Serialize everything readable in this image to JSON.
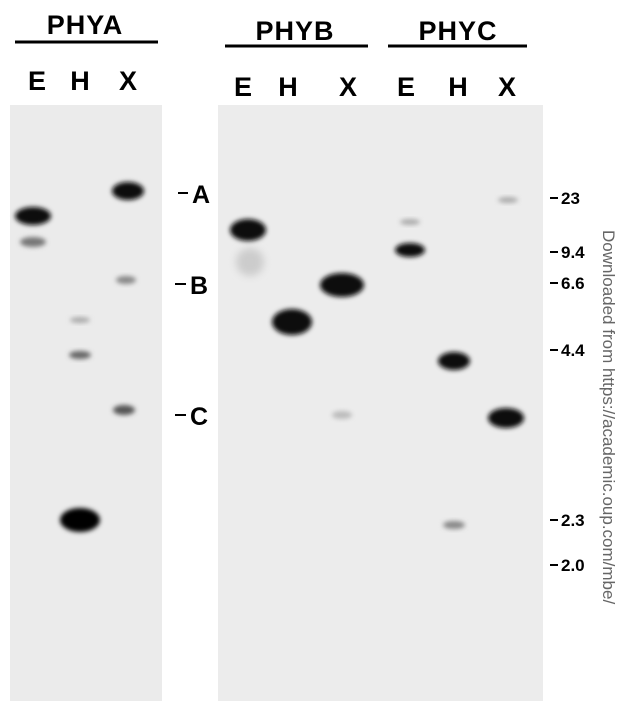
{
  "groups": [
    {
      "title": "PHYA",
      "lanes": [
        "E",
        "H",
        "X"
      ]
    },
    {
      "title": "PHYB",
      "lanes": [
        "E",
        "H",
        "X"
      ]
    },
    {
      "title": "PHYC",
      "lanes": [
        "E",
        "H",
        "X"
      ]
    }
  ],
  "band_markers": [
    "A",
    "B",
    "C"
  ],
  "size_markers": [
    "23",
    "9.4",
    "6.6",
    "4.4",
    "2.3",
    "2.0"
  ],
  "watermark": "Downloaded from https://academic.oup.com/mbe/"
}
